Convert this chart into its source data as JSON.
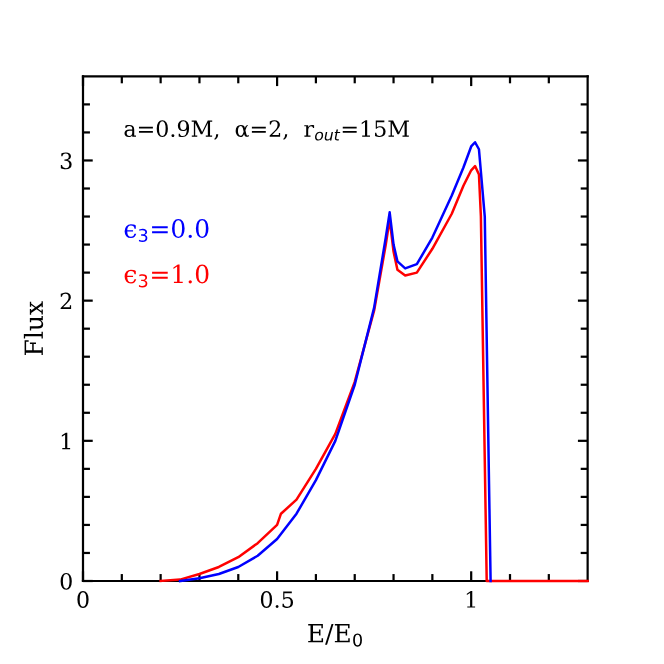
{
  "chart_data": {
    "type": "line",
    "xlabel": "E/E$_{0}$",
    "ylabel": "Flux",
    "annotations": [
      "a=0.9M,  α=2,  r$_{out}$=15M"
    ],
    "xlim": [
      0,
      1.3
    ],
    "ylim": [
      0,
      3.6
    ],
    "xticks": [
      0,
      0.5,
      1,
      {
        "value": 0.1,
        "label": null
      },
      {
        "value": 0.2,
        "label": null
      },
      {
        "value": 0.3,
        "label": null
      },
      {
        "value": 0.4,
        "label": null
      },
      {
        "value": 0.6,
        "label": null
      },
      {
        "value": 0.7,
        "label": null
      },
      {
        "value": 0.8,
        "label": null
      },
      {
        "value": 0.9,
        "label": null
      },
      {
        "value": 1.1,
        "label": null
      },
      {
        "value": 1.2,
        "label": null
      }
    ],
    "yticks": [
      0,
      1,
      2,
      3,
      {
        "value": 0.2,
        "label": null
      },
      {
        "value": 0.4,
        "label": null
      },
      {
        "value": 0.6,
        "label": null
      },
      {
        "value": 0.8,
        "label": null
      },
      {
        "value": 1.2,
        "label": null
      },
      {
        "value": 1.4,
        "label": null
      },
      {
        "value": 1.6,
        "label": null
      },
      {
        "value": 1.8,
        "label": null
      },
      {
        "value": 2.2,
        "label": null
      },
      {
        "value": 2.4,
        "label": null
      },
      {
        "value": 2.6,
        "label": null
      },
      {
        "value": 2.8,
        "label": null
      },
      {
        "value": 3.2,
        "label": null
      },
      {
        "value": 3.4,
        "label": null
      }
    ],
    "grid": false,
    "legend": false,
    "marker": "none",
    "line_style": "solid",
    "series": [
      {
        "name": "ϵ$_{3}$=0.0",
        "color": "#0000ff",
        "x": [
          0.25,
          0.3,
          0.35,
          0.4,
          0.45,
          0.5,
          0.55,
          0.6,
          0.65,
          0.7,
          0.75,
          0.78,
          0.79,
          0.8,
          0.81,
          0.83,
          0.86,
          0.9,
          0.95,
          0.98,
          1.0,
          1.01,
          1.02,
          1.035,
          1.05
        ],
        "values": [
          0.0,
          0.02,
          0.05,
          0.1,
          0.18,
          0.3,
          0.48,
          0.72,
          1.0,
          1.4,
          1.95,
          2.45,
          2.63,
          2.4,
          2.28,
          2.23,
          2.26,
          2.45,
          2.75,
          2.95,
          3.1,
          3.13,
          3.08,
          2.6,
          0.0
        ]
      },
      {
        "name": "ϵ$_{3}$=1.0",
        "color": "#ff0000",
        "x": [
          0.2,
          0.25,
          0.3,
          0.35,
          0.4,
          0.45,
          0.5,
          0.51,
          0.55,
          0.6,
          0.65,
          0.7,
          0.75,
          0.78,
          0.79,
          0.8,
          0.81,
          0.83,
          0.86,
          0.9,
          0.95,
          0.98,
          1.0,
          1.01,
          1.02,
          1.025,
          1.04,
          1.3
        ],
        "values": [
          0.0,
          0.01,
          0.05,
          0.1,
          0.17,
          0.27,
          0.4,
          0.48,
          0.58,
          0.8,
          1.05,
          1.42,
          1.93,
          2.4,
          2.58,
          2.35,
          2.22,
          2.18,
          2.2,
          2.37,
          2.62,
          2.82,
          2.93,
          2.96,
          2.9,
          2.6,
          0.0,
          0.0
        ]
      }
    ]
  }
}
